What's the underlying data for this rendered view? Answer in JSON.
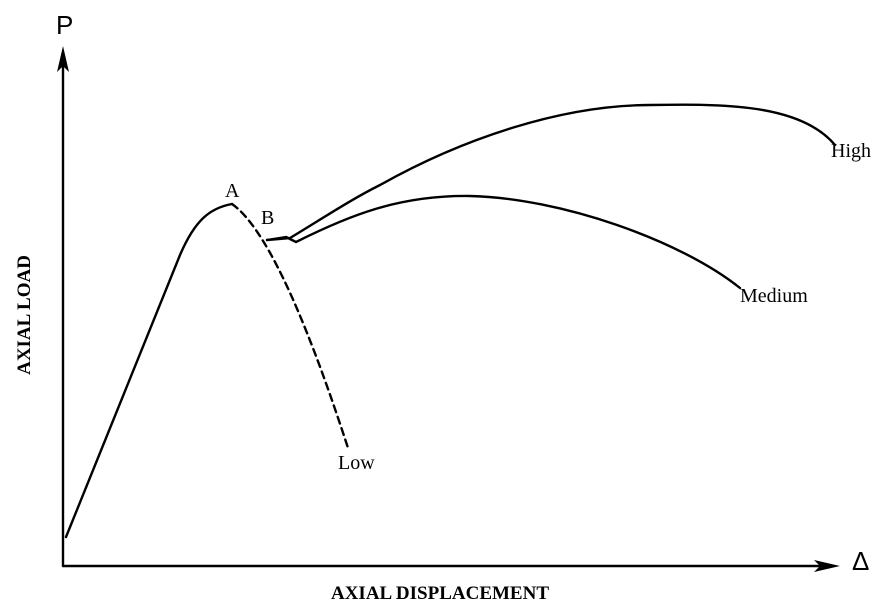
{
  "axes": {
    "y_symbol": "P",
    "x_symbol": "Δ",
    "y_title": "AXIAL LOAD",
    "x_title": "AXIAL DISPLACEMENT"
  },
  "points": {
    "peak": "A",
    "drop": "B"
  },
  "curves": {
    "low": "Low",
    "medium": "Medium",
    "high": "High"
  }
}
